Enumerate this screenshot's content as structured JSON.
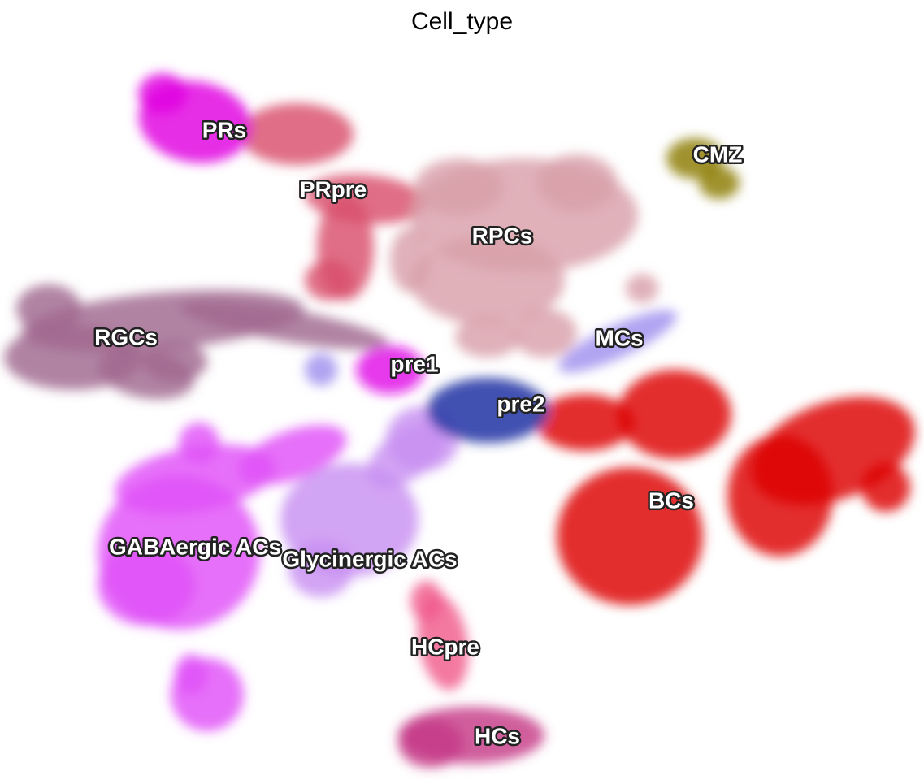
{
  "chart_data": {
    "type": "scatter",
    "title": "Cell_type",
    "xlabel": "",
    "ylabel": "",
    "grid": false,
    "legend": "none (labels placed on clusters)",
    "clusters": [
      {
        "label": "PRs",
        "color": "#e000e0"
      },
      {
        "label": "PRpre",
        "color": "#d94f6b"
      },
      {
        "label": "RPCs",
        "color": "#d9a0aa"
      },
      {
        "label": "CMZ",
        "color": "#8b7a00"
      },
      {
        "label": "RGCs",
        "color": "#a0688f"
      },
      {
        "label": "pre1",
        "color": "#e010e8"
      },
      {
        "label": "MCs",
        "color": "#a090ee"
      },
      {
        "label": "pre2",
        "color": "#2e3fa8"
      },
      {
        "label": "BCs",
        "color": "#dd0000"
      },
      {
        "label": "GABAergic ACs",
        "color": "#e050f8"
      },
      {
        "label": "Glycinergic ACs",
        "color": "#c890f2"
      },
      {
        "label": "HCpre",
        "color": "#f05a8c"
      },
      {
        "label": "HCs",
        "color": "#c63a88"
      }
    ]
  }
}
